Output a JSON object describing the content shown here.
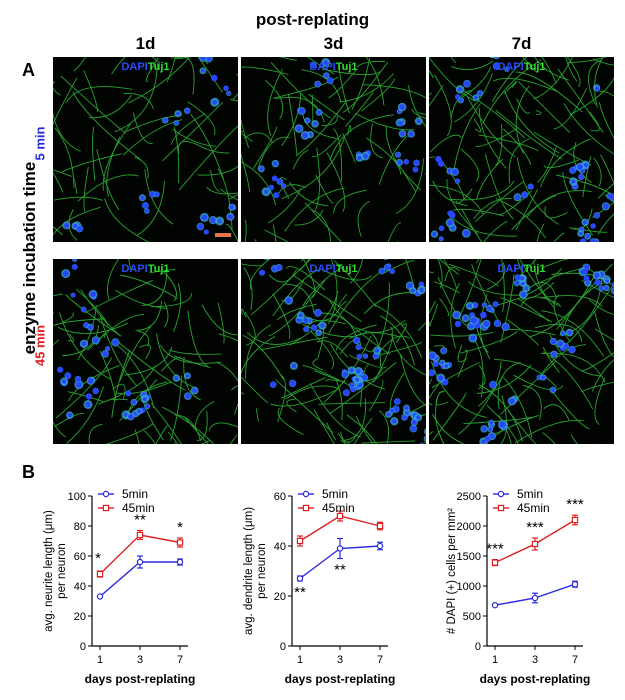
{
  "figure": {
    "title": "post-replating",
    "panel_a_letter": "A",
    "panel_b_letter": "B",
    "columns": [
      "1d",
      "3d",
      "7d"
    ],
    "row_group_label": "enzyme incubation time",
    "rows": [
      {
        "label": "5 min",
        "color": "#2a2ae0"
      },
      {
        "label": "45 min",
        "color": "#e02020"
      }
    ],
    "stain_dapi": "DAPI",
    "stain_tuj": "Tuj1",
    "dapi_color": "#2a4bff",
    "tuj_color": "#33dd33",
    "scale_bar_color": "#e8734a"
  },
  "chart_data": [
    {
      "type": "line",
      "ylabel_line1": "avg. neurite length (μm)",
      "ylabel_line2": "per neuron",
      "xlabel": "days post-replating",
      "categories": [
        "1",
        "3",
        "7"
      ],
      "ylim": [
        0,
        100
      ],
      "yticks": [
        "0",
        "20",
        "40",
        "60",
        "80",
        "100"
      ],
      "legend_position": "top-left",
      "series": [
        {
          "name": "5min",
          "color": "#2a2ae0",
          "values": [
            33,
            56,
            56
          ],
          "errors": [
            0,
            4,
            2
          ]
        },
        {
          "name": "45min",
          "color": "#e02020",
          "values": [
            48,
            74,
            69
          ],
          "errors": [
            2,
            3,
            3
          ]
        }
      ],
      "annotations": [
        "*",
        "**",
        "*"
      ]
    },
    {
      "type": "line",
      "ylabel_line1": "avg. dendrite length (μm)",
      "ylabel_line2": "per neuron",
      "xlabel": "days post-replating",
      "categories": [
        "1",
        "3",
        "7"
      ],
      "ylim": [
        0,
        60
      ],
      "yticks": [
        "0",
        "20",
        "40",
        "60"
      ],
      "legend_position": "top-left",
      "series": [
        {
          "name": "5min",
          "color": "#2a2ae0",
          "values": [
            27,
            39,
            40
          ],
          "errors": [
            1,
            4,
            1.5
          ]
        },
        {
          "name": "45min",
          "color": "#e02020",
          "values": [
            42,
            52,
            48
          ],
          "errors": [
            2,
            2,
            1.5
          ]
        }
      ],
      "annotations": [
        "**",
        "**"
      ]
    },
    {
      "type": "line",
      "ylabel_line1": "# DAPI (+) cells per mm²",
      "ylabel_line2": "",
      "xlabel": "days post-replating",
      "categories": [
        "1",
        "3",
        "7"
      ],
      "ylim": [
        0,
        2500
      ],
      "yticks": [
        "0",
        "500",
        "1000",
        "1500",
        "2000",
        "2500"
      ],
      "legend_position": "top-left",
      "series": [
        {
          "name": "5min",
          "color": "#2a2ae0",
          "values": [
            680,
            800,
            1030
          ],
          "errors": [
            0,
            80,
            50
          ]
        },
        {
          "name": "45min",
          "color": "#e02020",
          "values": [
            1390,
            1700,
            2100
          ],
          "errors": [
            50,
            100,
            80
          ]
        }
      ],
      "annotations": [
        "***",
        "***",
        "***"
      ]
    }
  ]
}
